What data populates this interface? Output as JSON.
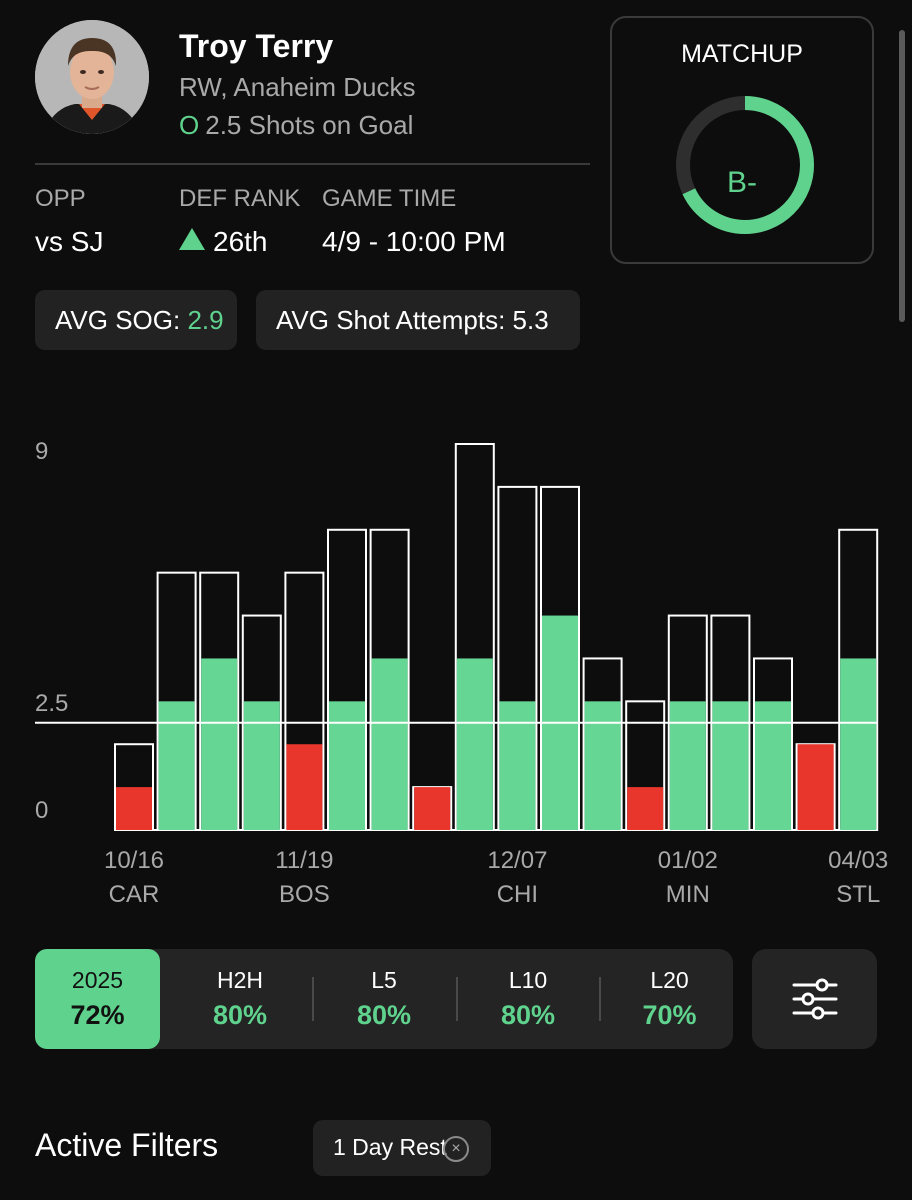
{
  "player": {
    "name": "Troy Terry",
    "position_team": "RW, Anaheim Ducks",
    "prop_ou": "O",
    "prop": "2.5 Shots on Goal"
  },
  "info": {
    "opp_label": "OPP",
    "opp_value": "vs SJ",
    "def_rank_label": "DEF RANK",
    "def_rank_value": "26th",
    "game_time_label": "GAME TIME",
    "game_time_value": "4/9 - 10:00 PM"
  },
  "matchup": {
    "title": "MATCHUP",
    "grade": "B-",
    "score_fraction": 0.68
  },
  "averages": {
    "avg_sog_label": "AVG SOG: ",
    "avg_sog_value": "2.9",
    "avg_attempts_label": "AVG Shot Attempts: ",
    "avg_attempts_value": "5.3"
  },
  "chart_data": {
    "type": "bar",
    "series": [
      {
        "name": "Shots on Goal",
        "values": [
          1,
          3,
          4,
          3,
          2,
          3,
          4,
          1,
          4,
          3,
          5,
          3,
          1,
          3,
          3,
          3,
          2,
          4
        ]
      },
      {
        "name": "Shot Attempts",
        "values": [
          2,
          6,
          6,
          5,
          6,
          7,
          7,
          1,
          9,
          8,
          8,
          4,
          3,
          5,
          5,
          4,
          2,
          7
        ]
      }
    ],
    "line": 2.5,
    "ylim": [
      0,
      9
    ],
    "yticks": [
      "0",
      "2.5",
      "9"
    ],
    "xticks": [
      {
        "index": 0,
        "date": "10/16",
        "opp": "CAR"
      },
      {
        "index": 4,
        "date": "11/19",
        "opp": "BOS"
      },
      {
        "index": 9,
        "date": "12/07",
        "opp": "CHI"
      },
      {
        "index": 13,
        "date": "01/02",
        "opp": "MIN"
      },
      {
        "index": 17,
        "date": "04/03",
        "opp": "STL"
      }
    ],
    "colors": {
      "over": "#66d694",
      "under": "#e8362d",
      "outline": "#ffffff",
      "line": "#ffffff"
    }
  },
  "tabs": [
    {
      "label": "2025",
      "pct": "72%",
      "active": true
    },
    {
      "label": "H2H",
      "pct": "80%",
      "active": false
    },
    {
      "label": "L5",
      "pct": "80%",
      "active": false
    },
    {
      "label": "L10",
      "pct": "80%",
      "active": false
    },
    {
      "label": "L20",
      "pct": "70%",
      "active": false
    }
  ],
  "settings": {
    "icon": "sliders-icon"
  },
  "filters": {
    "title": "Active Filters",
    "chips": [
      {
        "label": "1 Day Rest",
        "icon": "close-icon"
      }
    ]
  },
  "colors": {
    "accent": "#5fd38d",
    "negative": "#e8362d",
    "background": "#0d0d0d",
    "panel": "#242424"
  }
}
